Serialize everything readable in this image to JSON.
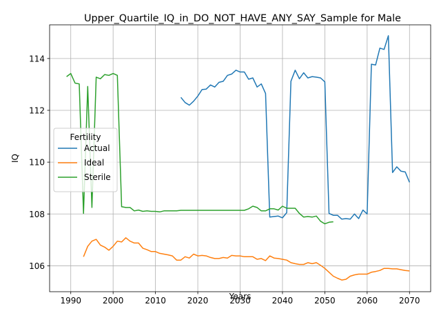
{
  "chart_data": {
    "type": "line",
    "title": "Upper_Quartile_IQ_in_DO_NOT_HAVE_ANY_SAY_Sample for Male",
    "xlabel": "Years",
    "ylabel": "IQ",
    "xlim": [
      1985,
      2075
    ],
    "ylim": [
      105.0,
      115.3
    ],
    "xticks": [
      1990,
      2000,
      2010,
      2020,
      2030,
      2040,
      2050,
      2060,
      2070
    ],
    "yticks": [
      106,
      108,
      110,
      112,
      114
    ],
    "grid": true,
    "legend": {
      "title": "Fertility",
      "placement": "center-left"
    },
    "series": [
      {
        "name": "Actual",
        "color": "#1f77b4",
        "x": [
          2016,
          2017,
          2018,
          2019,
          2020,
          2021,
          2022,
          2023,
          2024,
          2025,
          2026,
          2027,
          2028,
          2029,
          2030,
          2031,
          2032,
          2033,
          2034,
          2035,
          2036,
          2037,
          2038,
          2039,
          2040,
          2041,
          2042,
          2043,
          2044,
          2045,
          2046,
          2047,
          2048,
          2049,
          2050,
          2051,
          2052,
          2053,
          2054,
          2055,
          2056,
          2057,
          2058,
          2059,
          2060,
          2061,
          2062,
          2063,
          2064,
          2065,
          2066,
          2067,
          2068,
          2069,
          2070
        ],
        "y": [
          112.5,
          112.3,
          112.2,
          112.35,
          112.55,
          112.8,
          112.82,
          112.98,
          112.9,
          113.08,
          113.12,
          113.35,
          113.4,
          113.55,
          113.48,
          113.48,
          113.2,
          113.25,
          112.9,
          113.02,
          112.65,
          107.88,
          107.9,
          107.92,
          107.85,
          108.05,
          113.12,
          113.55,
          113.22,
          113.45,
          113.25,
          113.3,
          113.28,
          113.25,
          113.1,
          108.02,
          107.95,
          107.95,
          107.8,
          107.82,
          107.8,
          108.0,
          107.82,
          108.15,
          108.0,
          113.78,
          113.75,
          114.4,
          114.35,
          114.88,
          109.6,
          109.82,
          109.65,
          109.62,
          109.22
        ]
      },
      {
        "name": "Ideal",
        "color": "#ff7f0e",
        "x": [
          1993,
          1994,
          1995,
          1996,
          1997,
          1998,
          1999,
          2000,
          2001,
          2002,
          2003,
          2004,
          2005,
          2006,
          2007,
          2008,
          2009,
          2010,
          2011,
          2012,
          2013,
          2014,
          2015,
          2016,
          2017,
          2018,
          2019,
          2020,
          2021,
          2022,
          2023,
          2024,
          2025,
          2026,
          2027,
          2028,
          2029,
          2030,
          2031,
          2032,
          2033,
          2034,
          2035,
          2036,
          2037,
          2038,
          2039,
          2040,
          2041,
          2042,
          2043,
          2044,
          2045,
          2046,
          2047,
          2048,
          2049,
          2050,
          2051,
          2052,
          2053,
          2054,
          2055,
          2056,
          2057,
          2058,
          2059,
          2060,
          2061,
          2062,
          2063,
          2064,
          2065,
          2066,
          2067,
          2068,
          2069,
          2070
        ],
        "y": [
          106.35,
          106.75,
          106.95,
          107.02,
          106.8,
          106.72,
          106.6,
          106.75,
          106.95,
          106.92,
          107.08,
          106.95,
          106.88,
          106.88,
          106.68,
          106.62,
          106.55,
          106.55,
          106.48,
          106.45,
          106.42,
          106.38,
          106.22,
          106.22,
          106.35,
          106.3,
          106.45,
          106.38,
          106.4,
          106.38,
          106.32,
          106.28,
          106.28,
          106.32,
          106.3,
          106.4,
          106.38,
          106.38,
          106.35,
          106.35,
          106.35,
          106.25,
          106.28,
          106.2,
          106.38,
          106.3,
          106.28,
          106.25,
          106.22,
          106.12,
          106.08,
          106.05,
          106.05,
          106.12,
          106.08,
          106.12,
          106.02,
          105.9,
          105.75,
          105.6,
          105.52,
          105.45,
          105.48,
          105.6,
          105.65,
          105.68,
          105.68,
          105.68,
          105.75,
          105.78,
          105.82,
          105.9,
          105.9,
          105.88,
          105.88,
          105.85,
          105.82,
          105.8
        ]
      },
      {
        "name": "Sterile",
        "color": "#2ca02c",
        "x": [
          1989,
          1990,
          1991,
          1992,
          1993,
          1994,
          1995,
          1996,
          1997,
          1998,
          1999,
          2000,
          2001,
          2002,
          2003,
          2004,
          2005,
          2006,
          2007,
          2008,
          2009,
          2010,
          2011,
          2012,
          2013,
          2014,
          2015,
          2016,
          2017,
          2018,
          2019,
          2020,
          2021,
          2022,
          2023,
          2024,
          2025,
          2026,
          2027,
          2028,
          2029,
          2030,
          2031,
          2032,
          2033,
          2034,
          2035,
          2036,
          2037,
          2038,
          2039,
          2040,
          2041,
          2042,
          2043,
          2044,
          2045,
          2046,
          2047,
          2048,
          2049,
          2050,
          2051,
          2052
        ],
        "y": [
          113.3,
          113.42,
          113.05,
          113.02,
          108.02,
          112.92,
          108.25,
          113.28,
          113.22,
          113.38,
          113.35,
          113.42,
          113.35,
          108.28,
          108.25,
          108.25,
          108.12,
          108.15,
          108.1,
          108.12,
          108.1,
          108.1,
          108.08,
          108.12,
          108.12,
          108.12,
          108.12,
          108.14,
          108.14,
          108.14,
          108.14,
          108.14,
          108.14,
          108.14,
          108.14,
          108.14,
          108.14,
          108.14,
          108.14,
          108.14,
          108.14,
          108.14,
          108.14,
          108.2,
          108.3,
          108.25,
          108.12,
          108.12,
          108.2,
          108.2,
          108.15,
          108.3,
          108.22,
          108.22,
          108.22,
          108.02,
          107.88,
          107.9,
          107.88,
          107.92,
          107.72,
          107.62,
          107.68,
          107.7
        ]
      }
    ]
  }
}
